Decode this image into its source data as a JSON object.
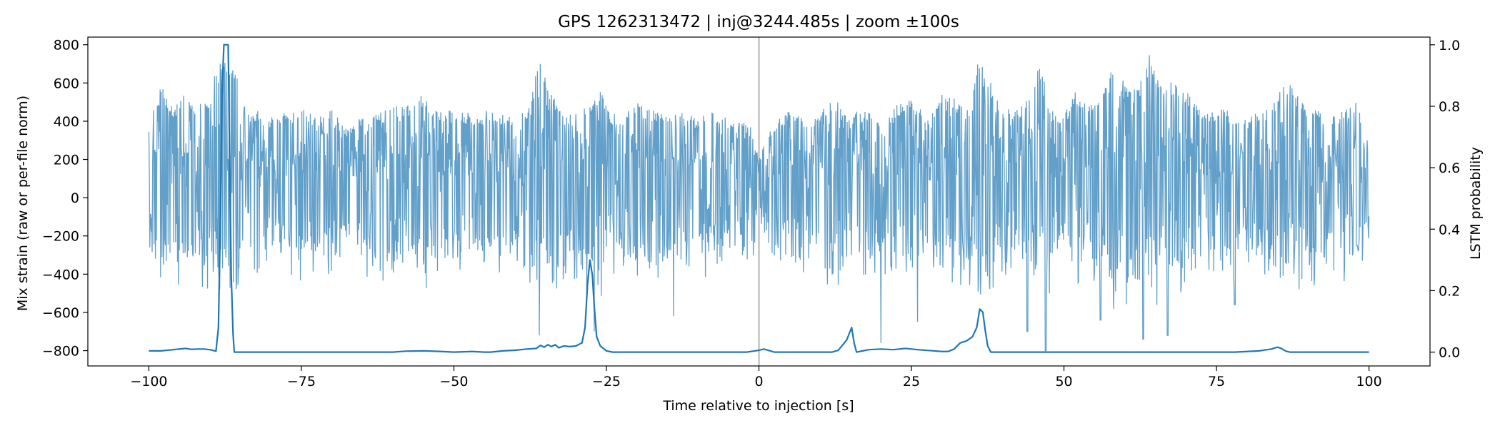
{
  "chart_data": {
    "type": "line",
    "title": "GPS 1262313472 | inj@3244.485s | zoom ±100s",
    "xlabel": "Time relative to injection [s]",
    "ylabel_left": "Mix strain (raw or per-file norm)",
    "ylabel_right": "LSTM probability",
    "xlim": [
      -110,
      110
    ],
    "ylim_left": [
      -880,
      840
    ],
    "ylim_right": [
      -0.045,
      1.025
    ],
    "x_ticks": [
      -100,
      -75,
      -50,
      -25,
      0,
      25,
      50,
      75,
      100
    ],
    "x_tick_labels": [
      "−100",
      "−75",
      "−50",
      "−25",
      "0",
      "25",
      "50",
      "75",
      "100"
    ],
    "y_left_ticks": [
      800,
      600,
      400,
      200,
      0,
      -200,
      -400,
      -600,
      -800
    ],
    "y_left_tick_labels": [
      "800",
      "600",
      "400",
      "200",
      "0",
      "−200",
      "−400",
      "−600",
      "−800"
    ],
    "y_right_ticks": [
      1.0,
      0.8,
      0.6,
      0.4,
      0.2,
      0.0
    ],
    "y_right_tick_labels": [
      "1.0",
      "0.8",
      "0.6",
      "0.4",
      "0.2",
      "0.0"
    ],
    "injection_marker_x": 0,
    "grid": false,
    "series": [
      {
        "axis": "left",
        "color": "#1f77b4",
        "opacity": 0.7,
        "envelope": [
          [
            -100,
            380
          ],
          [
            -98,
            590
          ],
          [
            -96,
            470
          ],
          [
            -94,
            560
          ],
          [
            -92,
            470
          ],
          [
            -90,
            560
          ],
          [
            -88,
            760
          ],
          [
            -86,
            710
          ],
          [
            -84,
            440
          ],
          [
            -82,
            460
          ],
          [
            -80,
            420
          ],
          [
            -78,
            450
          ],
          [
            -76,
            460
          ],
          [
            -74,
            460
          ],
          [
            -72,
            420
          ],
          [
            -70,
            480
          ],
          [
            -68,
            360
          ],
          [
            -66,
            420
          ],
          [
            -64,
            420
          ],
          [
            -62,
            450
          ],
          [
            -60,
            500
          ],
          [
            -58,
            470
          ],
          [
            -56,
            560
          ],
          [
            -54,
            520
          ],
          [
            -52,
            450
          ],
          [
            -50,
            460
          ],
          [
            -48,
            450
          ],
          [
            -46,
            420
          ],
          [
            -44,
            480
          ],
          [
            -42,
            440
          ],
          [
            -40,
            440
          ],
          [
            -38,
            470
          ],
          [
            -36,
            720
          ],
          [
            -34,
            560
          ],
          [
            -32,
            450
          ],
          [
            -30,
            440
          ],
          [
            -28,
            520
          ],
          [
            -26,
            560
          ],
          [
            -24,
            440
          ],
          [
            -22,
            450
          ],
          [
            -20,
            500
          ],
          [
            -18,
            470
          ],
          [
            -16,
            460
          ],
          [
            -14,
            460
          ],
          [
            -12,
            440
          ],
          [
            -10,
            420
          ],
          [
            -8,
            450
          ],
          [
            -6,
            460
          ],
          [
            -4,
            380
          ],
          [
            -2,
            450
          ],
          [
            0,
            200
          ],
          [
            2,
            380
          ],
          [
            4,
            440
          ],
          [
            6,
            470
          ],
          [
            8,
            380
          ],
          [
            10,
            460
          ],
          [
            12,
            540
          ],
          [
            14,
            450
          ],
          [
            16,
            460
          ],
          [
            18,
            450
          ],
          [
            20,
            380
          ],
          [
            22,
            460
          ],
          [
            24,
            540
          ],
          [
            26,
            480
          ],
          [
            28,
            430
          ],
          [
            30,
            540
          ],
          [
            32,
            520
          ],
          [
            34,
            460
          ],
          [
            36,
            720
          ],
          [
            38,
            620
          ],
          [
            40,
            480
          ],
          [
            42,
            450
          ],
          [
            44,
            520
          ],
          [
            46,
            700
          ],
          [
            48,
            460
          ],
          [
            50,
            440
          ],
          [
            52,
            580
          ],
          [
            54,
            500
          ],
          [
            56,
            520
          ],
          [
            58,
            700
          ],
          [
            60,
            600
          ],
          [
            62,
            570
          ],
          [
            64,
            760
          ],
          [
            66,
            620
          ],
          [
            68,
            600
          ],
          [
            70,
            580
          ],
          [
            72,
            480
          ],
          [
            74,
            440
          ],
          [
            76,
            480
          ],
          [
            78,
            440
          ],
          [
            80,
            420
          ],
          [
            82,
            470
          ],
          [
            84,
            470
          ],
          [
            86,
            640
          ],
          [
            88,
            560
          ],
          [
            90,
            470
          ],
          [
            92,
            450
          ],
          [
            94,
            430
          ],
          [
            96,
            470
          ],
          [
            98,
            530
          ],
          [
            100,
            300
          ]
        ],
        "downspikes": [
          [
            -36,
            -720
          ],
          [
            -27,
            -700
          ],
          [
            -14,
            -620
          ],
          [
            20,
            -760
          ],
          [
            26,
            -650
          ],
          [
            44,
            -700
          ],
          [
            47,
            -800
          ],
          [
            56,
            -640
          ],
          [
            63,
            -740
          ],
          [
            67,
            -720
          ],
          [
            78,
            -560
          ],
          [
            98,
            -250
          ]
        ]
      },
      {
        "axis": "right",
        "color": "#1f77b4",
        "opacity": 1,
        "points": [
          [
            -100,
            0.004
          ],
          [
            -98,
            0.004
          ],
          [
            -96,
            0.008
          ],
          [
            -94,
            0.012
          ],
          [
            -93,
            0.009
          ],
          [
            -92,
            0.01
          ],
          [
            -91,
            0.01
          ],
          [
            -90,
            0.008
          ],
          [
            -89,
            0.003
          ],
          [
            -88.6,
            0.08
          ],
          [
            -88.3,
            0.4
          ],
          [
            -88,
            0.85
          ],
          [
            -87.7,
            1.0
          ],
          [
            -87,
            1.0
          ],
          [
            -86.8,
            0.7
          ],
          [
            -86.5,
            0.25
          ],
          [
            -86.2,
            0.06
          ],
          [
            -86,
            0.0
          ],
          [
            -80,
            0.0
          ],
          [
            -75,
            0.0
          ],
          [
            -70,
            0.0
          ],
          [
            -65,
            0.0
          ],
          [
            -60,
            0.0
          ],
          [
            -58,
            0.003
          ],
          [
            -55,
            0.004
          ],
          [
            -52,
            0.002
          ],
          [
            -50,
            0.0
          ],
          [
            -47,
            0.002
          ],
          [
            -45,
            0.0
          ],
          [
            -44,
            0.0
          ],
          [
            -42,
            0.004
          ],
          [
            -40,
            0.006
          ],
          [
            -38,
            0.01
          ],
          [
            -36.5,
            0.012
          ],
          [
            -35.8,
            0.022
          ],
          [
            -35.2,
            0.016
          ],
          [
            -34.6,
            0.024
          ],
          [
            -34,
            0.018
          ],
          [
            -33.4,
            0.024
          ],
          [
            -32.8,
            0.014
          ],
          [
            -32,
            0.02
          ],
          [
            -31,
            0.018
          ],
          [
            -30,
            0.02
          ],
          [
            -29,
            0.03
          ],
          [
            -28.5,
            0.08
          ],
          [
            -28.1,
            0.22
          ],
          [
            -27.7,
            0.3
          ],
          [
            -27.3,
            0.25
          ],
          [
            -27,
            0.15
          ],
          [
            -26.6,
            0.05
          ],
          [
            -26,
            0.02
          ],
          [
            -25,
            0.004
          ],
          [
            -24,
            0.0
          ],
          [
            -20,
            0.0
          ],
          [
            -10,
            0.0
          ],
          [
            -2,
            0.0
          ],
          [
            0,
            0.006
          ],
          [
            0.8,
            0.01
          ],
          [
            1.5,
            0.006
          ],
          [
            2.5,
            0.0
          ],
          [
            8,
            0.0
          ],
          [
            12,
            0.0
          ],
          [
            13,
            0.006
          ],
          [
            13.8,
            0.025
          ],
          [
            14.4,
            0.04
          ],
          [
            14.8,
            0.06
          ],
          [
            15.2,
            0.08
          ],
          [
            15.6,
            0.03
          ],
          [
            16,
            0.0
          ],
          [
            18,
            0.008
          ],
          [
            20,
            0.01
          ],
          [
            22,
            0.008
          ],
          [
            24,
            0.012
          ],
          [
            26,
            0.008
          ],
          [
            28,
            0.005
          ],
          [
            30,
            0.002
          ],
          [
            31,
            0.002
          ],
          [
            32,
            0.01
          ],
          [
            33,
            0.03
          ],
          [
            34,
            0.036
          ],
          [
            35,
            0.05
          ],
          [
            35.7,
            0.08
          ],
          [
            36.2,
            0.14
          ],
          [
            36.7,
            0.13
          ],
          [
            37.1,
            0.07
          ],
          [
            37.5,
            0.02
          ],
          [
            38,
            0.0
          ],
          [
            45,
            0.0
          ],
          [
            47,
            0.0
          ],
          [
            50,
            0.0
          ],
          [
            60,
            0.0
          ],
          [
            70,
            0.0
          ],
          [
            78,
            0.0
          ],
          [
            80,
            0.002
          ],
          [
            82,
            0.004
          ],
          [
            84,
            0.01
          ],
          [
            85,
            0.016
          ],
          [
            85.6,
            0.012
          ],
          [
            86.4,
            0.003
          ],
          [
            87,
            0.0
          ],
          [
            100,
            0.0
          ]
        ]
      }
    ]
  }
}
